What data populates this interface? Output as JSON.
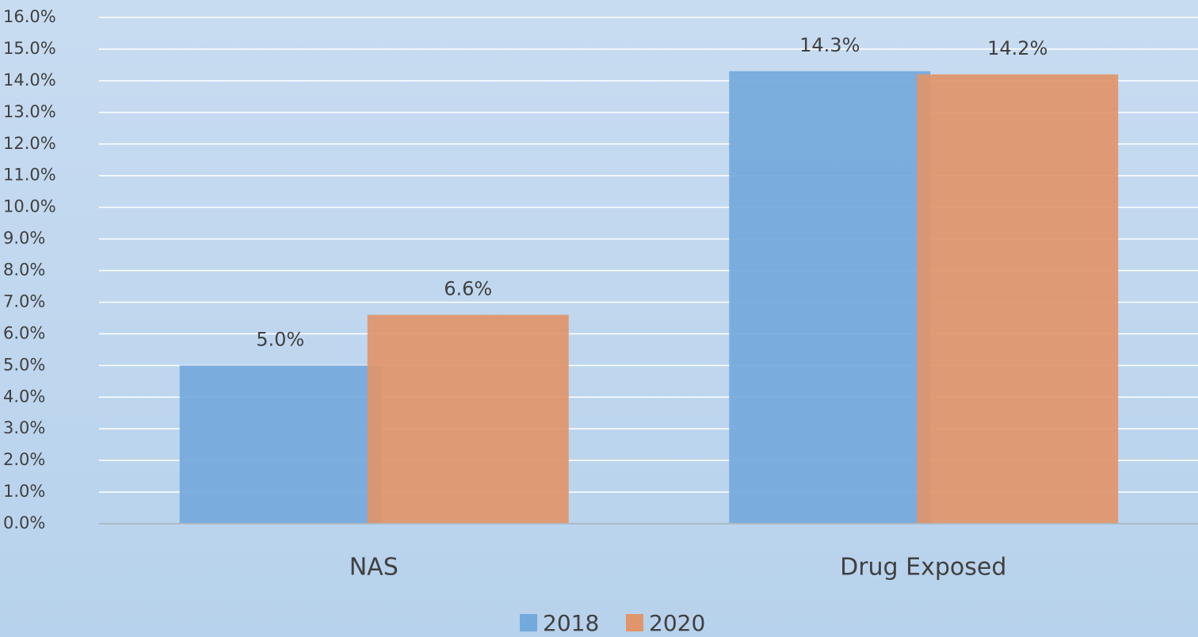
{
  "chart_data": {
    "type": "bar",
    "categories": [
      "NAS",
      "Drug Exposed"
    ],
    "series": [
      {
        "name": "2018",
        "color": "#74a9db",
        "values": [
          5.0,
          14.3
        ],
        "value_labels": [
          "5.0%",
          "14.3%"
        ]
      },
      {
        "name": "2020",
        "color": "#e0956a",
        "values": [
          6.6,
          14.2
        ],
        "value_labels": [
          "6.6%",
          "14.2%"
        ]
      }
    ],
    "ylim": [
      0,
      16
    ],
    "yticks": [
      {
        "value": 0,
        "label": "0.0%"
      },
      {
        "value": 1,
        "label": "1.0%"
      },
      {
        "value": 2,
        "label": "2.0%"
      },
      {
        "value": 3,
        "label": "3.0%"
      },
      {
        "value": 4,
        "label": "4.0%"
      },
      {
        "value": 5,
        "label": "5.0%"
      },
      {
        "value": 6,
        "label": "6.0%"
      },
      {
        "value": 7,
        "label": "7.0%"
      },
      {
        "value": 8,
        "label": "8.0%"
      },
      {
        "value": 9,
        "label": "9.0%"
      },
      {
        "value": 10,
        "label": "10.0%"
      },
      {
        "value": 11,
        "label": "11.0%"
      },
      {
        "value": 12,
        "label": "12.0%"
      },
      {
        "value": 13,
        "label": "13.0%"
      },
      {
        "value": 14,
        "label": "14.0%"
      },
      {
        "value": 15,
        "label": "15.0%"
      },
      {
        "value": 16,
        "label": "16.0%"
      }
    ],
    "grid": true,
    "legend": "bottom"
  }
}
